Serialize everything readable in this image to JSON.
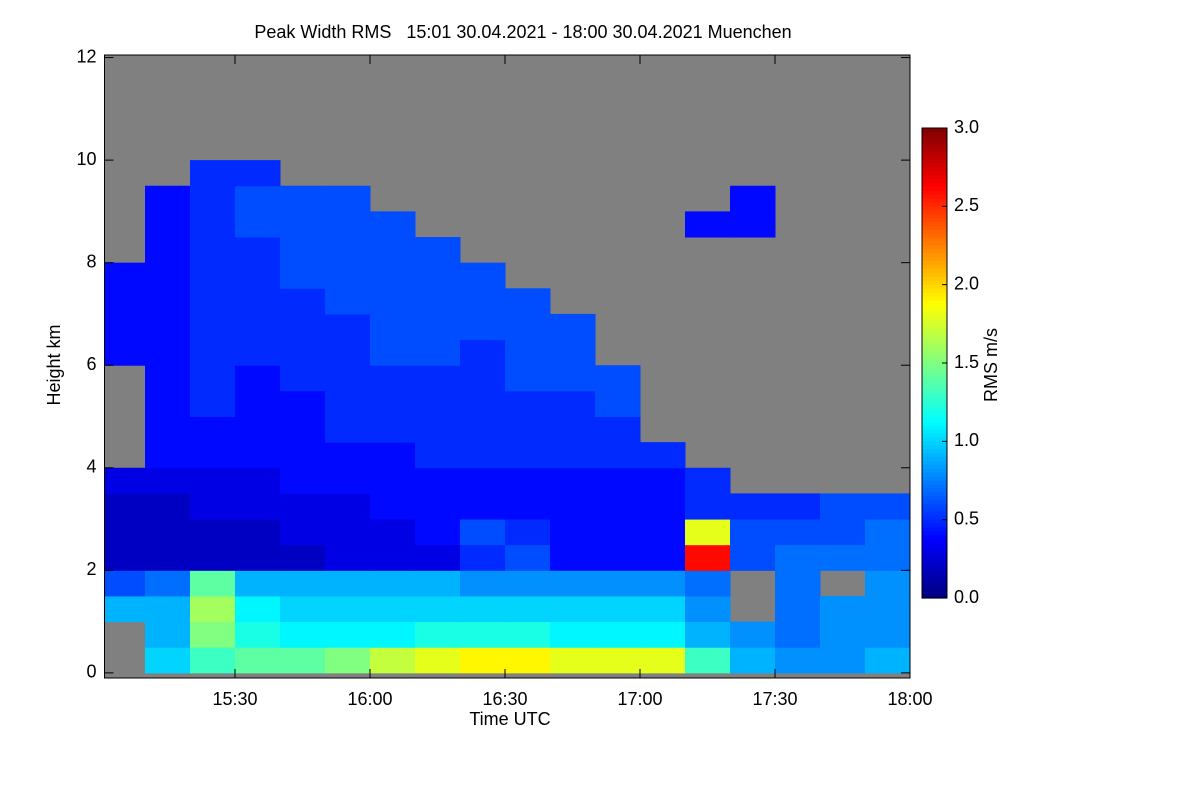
{
  "chart_data": {
    "type": "heatmap",
    "title": "Peak Width RMS   15:01 30.04.2021 - 18:00 30.04.2021 Muenchen",
    "x_label": "Time UTC",
    "y_label": "Height km",
    "colorbar_label": "RMS m/s",
    "xlim": [
      901,
      1080
    ],
    "xticks": [
      {
        "value": 930,
        "label": "15:30"
      },
      {
        "value": 960,
        "label": "16:00"
      },
      {
        "value": 990,
        "label": "16:30"
      },
      {
        "value": 1020,
        "label": "17:00"
      },
      {
        "value": 1050,
        "label": "17:30"
      },
      {
        "value": 1080,
        "label": "18:00"
      }
    ],
    "ylim": [
      -0.1,
      12.05
    ],
    "yticks": [
      0,
      2,
      4,
      6,
      8,
      10,
      12
    ],
    "zlim": [
      0,
      3
    ],
    "zticks": [
      {
        "value": 0,
        "label": "0.0"
      },
      {
        "value": 0.5,
        "label": "0.5"
      },
      {
        "value": 1,
        "label": "1.0"
      },
      {
        "value": 1.5,
        "label": "1.5"
      },
      {
        "value": 2,
        "label": "2.0"
      },
      {
        "value": 2.5,
        "label": "2.5"
      },
      {
        "value": 3,
        "label": "3.0"
      }
    ],
    "colormap": "jet",
    "missing_color": "#808080",
    "xbins": [
      901,
      910,
      920,
      930,
      940,
      950,
      960,
      970,
      980,
      990,
      1000,
      1010,
      1020,
      1030,
      1040,
      1050,
      1060,
      1070,
      1080
    ],
    "ybins": [
      0,
      0.5,
      1,
      1.5,
      2,
      2.5,
      3,
      3.5,
      4,
      4.5,
      5,
      5.5,
      6,
      6.5,
      7,
      7.5,
      8,
      8.5,
      9,
      9.5,
      10
    ],
    "z": [
      [
        null,
        1.0,
        1.3,
        1.4,
        1.4,
        1.5,
        1.7,
        1.8,
        1.9,
        1.9,
        1.8,
        1.8,
        1.8,
        1.3,
        0.9,
        0.8,
        0.8,
        0.9
      ],
      [
        null,
        0.9,
        1.5,
        1.2,
        1.1,
        1.1,
        1.1,
        1.2,
        1.2,
        1.2,
        1.1,
        1.1,
        1.1,
        0.9,
        0.8,
        0.7,
        0.8,
        0.8
      ],
      [
        0.9,
        0.9,
        1.6,
        1.1,
        1.0,
        1.0,
        1.0,
        1.0,
        1.0,
        1.0,
        1.0,
        1.0,
        1.0,
        0.8,
        null,
        0.7,
        0.8,
        0.8
      ],
      [
        0.6,
        0.7,
        1.4,
        0.9,
        0.9,
        0.9,
        0.9,
        0.9,
        0.8,
        0.8,
        0.8,
        0.8,
        0.8,
        0.7,
        null,
        0.7,
        null,
        0.8
      ],
      [
        0.2,
        0.2,
        0.2,
        0.2,
        0.2,
        0.3,
        0.3,
        0.3,
        0.5,
        0.6,
        0.4,
        0.4,
        0.4,
        2.6,
        0.6,
        0.7,
        0.7,
        0.7
      ],
      [
        0.2,
        0.2,
        0.2,
        0.2,
        0.3,
        0.3,
        0.3,
        0.4,
        0.6,
        0.5,
        0.4,
        0.4,
        0.4,
        1.8,
        0.6,
        0.6,
        0.6,
        0.7
      ],
      [
        0.2,
        0.2,
        0.3,
        0.3,
        0.3,
        0.3,
        0.4,
        0.4,
        0.4,
        0.4,
        0.4,
        0.4,
        0.4,
        0.5,
        0.5,
        0.5,
        0.6,
        0.6
      ],
      [
        0.3,
        0.3,
        0.3,
        0.3,
        0.4,
        0.4,
        0.4,
        0.4,
        0.4,
        0.4,
        0.4,
        0.4,
        0.4,
        0.5,
        null,
        null,
        null,
        null
      ],
      [
        null,
        0.4,
        0.4,
        0.4,
        0.4,
        0.4,
        0.4,
        0.5,
        0.5,
        0.5,
        0.5,
        0.5,
        0.5,
        null,
        null,
        null,
        null,
        null
      ],
      [
        null,
        0.4,
        0.4,
        0.4,
        0.4,
        0.5,
        0.5,
        0.5,
        0.5,
        0.5,
        0.5,
        0.5,
        null,
        null,
        null,
        null,
        null,
        null
      ],
      [
        null,
        0.4,
        0.5,
        0.4,
        0.4,
        0.5,
        0.5,
        0.5,
        0.5,
        0.5,
        0.5,
        0.6,
        null,
        null,
        null,
        null,
        null,
        null
      ],
      [
        null,
        0.4,
        0.5,
        0.4,
        0.5,
        0.5,
        0.5,
        0.5,
        0.5,
        0.6,
        0.6,
        0.6,
        null,
        null,
        null,
        null,
        null,
        null
      ],
      [
        0.4,
        0.4,
        0.5,
        0.5,
        0.5,
        0.5,
        0.6,
        0.6,
        0.5,
        0.6,
        0.6,
        null,
        null,
        null,
        null,
        null,
        null,
        null
      ],
      [
        0.4,
        0.4,
        0.5,
        0.5,
        0.5,
        0.5,
        0.6,
        0.6,
        0.6,
        0.6,
        0.6,
        null,
        null,
        null,
        null,
        null,
        null,
        null
      ],
      [
        0.4,
        0.4,
        0.5,
        0.5,
        0.5,
        0.6,
        0.6,
        0.6,
        0.6,
        0.6,
        null,
        null,
        null,
        null,
        null,
        null,
        null,
        null
      ],
      [
        0.4,
        0.4,
        0.5,
        0.5,
        0.6,
        0.6,
        0.6,
        0.6,
        0.6,
        null,
        null,
        null,
        null,
        null,
        null,
        null,
        null,
        null
      ],
      [
        null,
        0.4,
        0.5,
        0.5,
        0.6,
        0.6,
        0.6,
        0.6,
        null,
        null,
        null,
        null,
        null,
        null,
        null,
        null,
        null,
        null
      ],
      [
        null,
        0.4,
        0.5,
        0.6,
        0.6,
        0.6,
        0.6,
        null,
        null,
        null,
        null,
        null,
        null,
        0.4,
        0.4,
        null,
        null,
        null
      ],
      [
        null,
        0.4,
        0.5,
        0.6,
        0.6,
        0.6,
        null,
        null,
        null,
        null,
        null,
        null,
        null,
        null,
        0.4,
        null,
        null,
        null
      ],
      [
        null,
        null,
        0.5,
        0.5,
        null,
        null,
        null,
        null,
        null,
        null,
        null,
        null,
        null,
        null,
        null,
        null,
        null,
        null
      ]
    ]
  }
}
